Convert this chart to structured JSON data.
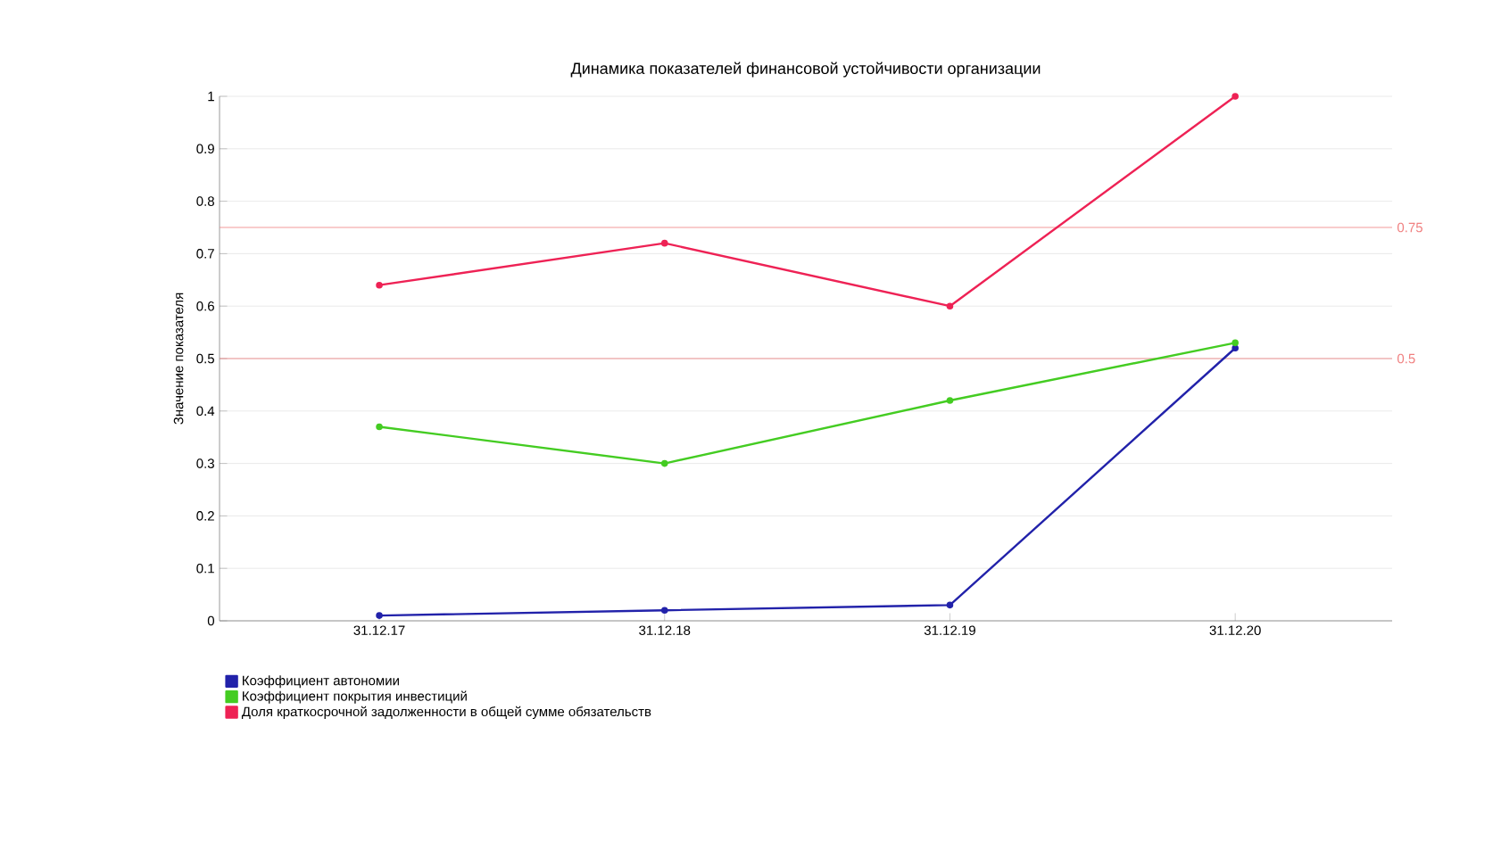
{
  "chart_data": {
    "type": "line",
    "title": "Динамика показателей финансовой устойчивости организации",
    "ylabel": "Значение показателя",
    "categories": [
      "31.12.17",
      "31.12.18",
      "31.12.19",
      "31.12.20"
    ],
    "series": [
      {
        "name": "Коэффициент автономии",
        "color": "#2222aa",
        "values": [
          0.01,
          0.02,
          0.03,
          0.52
        ]
      },
      {
        "name": "Коэффициент покрытия инвестиций",
        "color": "#44cc22",
        "values": [
          0.37,
          0.3,
          0.42,
          0.53
        ]
      },
      {
        "name": "Доля краткосрочной задолженности в общей сумме обязательств",
        "color": "#ee2255",
        "values": [
          0.64,
          0.72,
          0.6,
          1.0
        ]
      }
    ],
    "ylim": [
      0,
      1
    ],
    "yticks": [
      0,
      0.1,
      0.2,
      0.3,
      0.4,
      0.5,
      0.6,
      0.7,
      0.8,
      0.9,
      1
    ],
    "ref_lines": [
      {
        "axis": "y",
        "value": 0.75,
        "label": "0.75",
        "color": "#f08080"
      },
      {
        "axis": "y",
        "value": 0.5,
        "label": "0.5",
        "color": "#f08080"
      }
    ],
    "grid": "y",
    "legend": "bottom left",
    "marker": "circle",
    "line_style": "solid"
  }
}
